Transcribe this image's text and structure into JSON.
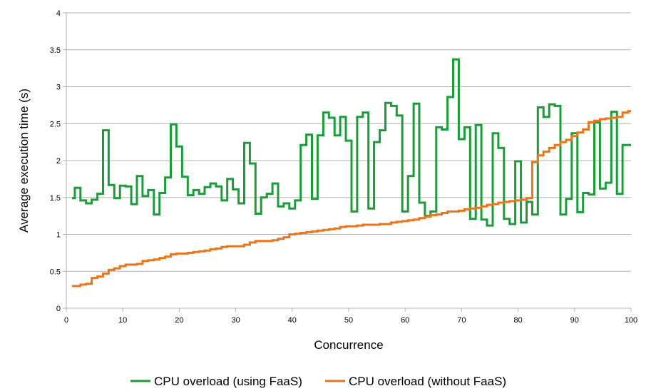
{
  "chart_data": {
    "type": "line",
    "step": true,
    "title": "",
    "xlabel": "Concurrence",
    "ylabel": "Average execution time (s)",
    "xlim": [
      0,
      100
    ],
    "ylim": [
      0,
      4
    ],
    "xticks": [
      "0",
      "10",
      "20",
      "30",
      "40",
      "50",
      "60",
      "70",
      "80",
      "90",
      "100"
    ],
    "yticks": [
      "0",
      "0.5",
      "1",
      "1.5",
      "2",
      "2.5",
      "3",
      "3.5",
      "4"
    ],
    "grid": "horizontal",
    "legend": "bottom",
    "x": [
      1,
      2,
      3,
      4,
      5,
      6,
      7,
      8,
      9,
      10,
      11,
      12,
      13,
      14,
      15,
      16,
      17,
      18,
      19,
      20,
      21,
      22,
      23,
      24,
      25,
      26,
      27,
      28,
      29,
      30,
      31,
      32,
      33,
      34,
      35,
      36,
      37,
      38,
      39,
      40,
      41,
      42,
      43,
      44,
      45,
      46,
      47,
      48,
      49,
      50,
      51,
      52,
      53,
      54,
      55,
      56,
      57,
      58,
      59,
      60,
      61,
      62,
      63,
      64,
      65,
      66,
      67,
      68,
      69,
      70,
      71,
      72,
      73,
      74,
      75,
      76,
      77,
      78,
      79,
      80,
      81,
      82,
      83,
      84,
      85,
      86,
      87,
      88,
      89,
      90,
      91,
      92,
      93,
      94,
      95,
      96,
      97,
      98,
      99,
      100
    ],
    "series": [
      {
        "name": "CPU overload (using FaaS)",
        "color": "#1a9c38",
        "values": [
          1.49,
          1.63,
          1.46,
          1.42,
          1.47,
          1.55,
          2.41,
          1.67,
          1.49,
          1.66,
          1.65,
          1.41,
          1.79,
          1.52,
          1.6,
          1.27,
          1.56,
          1.77,
          2.49,
          2.19,
          1.78,
          1.53,
          1.6,
          1.55,
          1.64,
          1.69,
          1.65,
          1.46,
          1.75,
          1.61,
          1.42,
          2.24,
          1.96,
          1.28,
          1.5,
          1.55,
          1.69,
          1.38,
          1.42,
          1.35,
          1.46,
          2.21,
          2.35,
          1.48,
          2.34,
          2.65,
          2.58,
          2.34,
          2.59,
          2.27,
          1.31,
          2.59,
          2.65,
          1.35,
          2.25,
          2.41,
          2.78,
          2.74,
          2.61,
          1.31,
          1.79,
          2.77,
          1.43,
          1.25,
          1.31,
          2.45,
          2.42,
          2.86,
          3.37,
          2.29,
          2.45,
          1.21,
          2.48,
          1.2,
          1.12,
          2.37,
          2.17,
          1.21,
          1.14,
          1.99,
          1.16,
          1.44,
          1.27,
          2.72,
          2.59,
          2.76,
          2.74,
          1.27,
          1.48,
          2.37,
          1.3,
          1.56,
          1.54,
          2.52,
          1.62,
          1.7,
          2.66,
          1.55,
          2.21,
          2.21
        ]
      },
      {
        "name": "CPU overload (without FaaS)",
        "color": "#e8761c",
        "values": [
          0.3,
          0.3,
          0.32,
          0.33,
          0.41,
          0.43,
          0.47,
          0.52,
          0.54,
          0.57,
          0.59,
          0.59,
          0.6,
          0.64,
          0.65,
          0.66,
          0.68,
          0.7,
          0.73,
          0.74,
          0.74,
          0.75,
          0.76,
          0.77,
          0.78,
          0.8,
          0.81,
          0.83,
          0.84,
          0.84,
          0.84,
          0.86,
          0.89,
          0.91,
          0.91,
          0.91,
          0.92,
          0.94,
          0.96,
          1.0,
          1.01,
          1.02,
          1.03,
          1.04,
          1.05,
          1.06,
          1.07,
          1.08,
          1.1,
          1.11,
          1.11,
          1.12,
          1.13,
          1.13,
          1.13,
          1.14,
          1.14,
          1.16,
          1.17,
          1.18,
          1.19,
          1.2,
          1.22,
          1.24,
          1.26,
          1.27,
          1.29,
          1.31,
          1.31,
          1.32,
          1.34,
          1.35,
          1.36,
          1.38,
          1.4,
          1.41,
          1.43,
          1.44,
          1.45,
          1.46,
          1.47,
          1.49,
          1.98,
          2.07,
          2.12,
          2.17,
          2.21,
          2.25,
          2.28,
          2.33,
          2.38,
          2.42,
          2.52,
          2.54,
          2.56,
          2.57,
          2.58,
          2.59,
          2.65,
          2.67
        ]
      }
    ]
  }
}
